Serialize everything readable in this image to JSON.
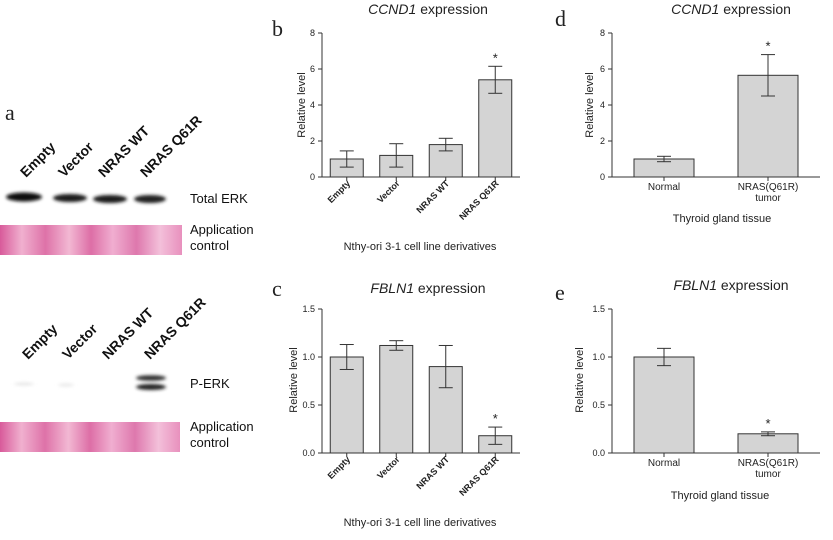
{
  "panel_a": {
    "letter": "a",
    "top_lanes": [
      "Empty",
      "Vector",
      "NRAS WT",
      "NRAS Q61R"
    ],
    "top_labels": {
      "band": "Total ERK",
      "control_line1": "Application",
      "control_line2": "control"
    },
    "bottom_lanes": [
      "Empty",
      "Vector",
      "NRAS WT",
      "NRAS Q61R"
    ],
    "bottom_labels": {
      "band": "P-ERK",
      "control_line1": "Application",
      "control_line2": "control"
    }
  },
  "chart_data": [
    {
      "id": "b",
      "letter": "b",
      "type": "bar",
      "title_gene": "CCND1",
      "title_rest": " expression",
      "categories": [
        "Empty",
        "Vector",
        "NRAS WT",
        "NRAS Q61R"
      ],
      "values": [
        1.0,
        1.2,
        1.8,
        5.4
      ],
      "errors": [
        0.45,
        0.65,
        0.35,
        0.75
      ],
      "significant": [
        false,
        false,
        false,
        true
      ],
      "star": "*",
      "ylabel": "Relative level",
      "xlabel": "Nthy-ori 3-1 cell line derivatives",
      "ylim": [
        0,
        8
      ],
      "yticks": [
        "0",
        "2",
        "4",
        "6",
        "8"
      ],
      "ytick_values": [
        0,
        2,
        4,
        6,
        8
      ]
    },
    {
      "id": "c",
      "letter": "c",
      "type": "bar",
      "title_gene": "FBLN1",
      "title_rest": " expression",
      "categories": [
        "Empty",
        "Vector",
        "NRAS WT",
        "NRAS Q61R"
      ],
      "values": [
        1.0,
        1.12,
        0.9,
        0.18
      ],
      "errors": [
        0.13,
        0.05,
        0.22,
        0.09
      ],
      "significant": [
        false,
        false,
        false,
        true
      ],
      "star": "*",
      "ylabel": "Relative level",
      "xlabel": "Nthy-ori 3-1 cell line derivatives",
      "ylim": [
        0,
        1.5
      ],
      "yticks": [
        "0.0",
        "0.5",
        "1.0",
        "1.5"
      ],
      "ytick_values": [
        0,
        0.5,
        1.0,
        1.5
      ]
    },
    {
      "id": "d",
      "letter": "d",
      "type": "bar",
      "title_gene": "CCND1",
      "title_rest": " expression",
      "categories": [
        "Normal",
        "NRAS(Q61R)"
      ],
      "categories_line2": [
        "",
        "tumor"
      ],
      "values": [
        1.0,
        5.65
      ],
      "errors": [
        0.15,
        1.15
      ],
      "significant": [
        false,
        true
      ],
      "star": "*",
      "ylabel": "Relative level",
      "xlabel": "Thyroid gland tissue",
      "ylim": [
        0,
        8
      ],
      "yticks": [
        "0",
        "2",
        "4",
        "6",
        "8"
      ],
      "ytick_values": [
        0,
        2,
        4,
        6,
        8
      ]
    },
    {
      "id": "e",
      "letter": "e",
      "type": "bar",
      "title_gene": "FBLN1",
      "title_rest": " expression",
      "categories": [
        "Normal",
        "NRAS(Q61R)"
      ],
      "categories_line2": [
        "",
        "tumor"
      ],
      "values": [
        1.0,
        0.2
      ],
      "errors": [
        0.09,
        0.02
      ],
      "significant": [
        false,
        true
      ],
      "star": "*",
      "ylabel": "Relative level",
      "xlabel": "Thyroid gland tissue",
      "ylim": [
        0,
        1.5
      ],
      "yticks": [
        "0.0",
        "0.5",
        "1.0",
        "1.5"
      ],
      "ytick_values": [
        0,
        0.5,
        1.0,
        1.5
      ]
    }
  ]
}
